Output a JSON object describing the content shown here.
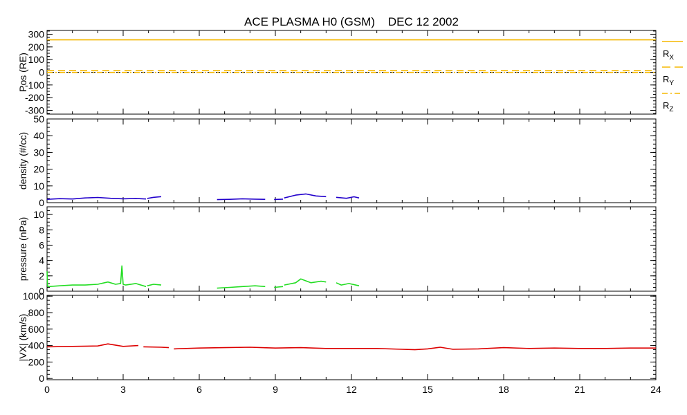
{
  "chart_data": {
    "title": "ACE PLASMA H0 (GSM)    DEC 12 2002",
    "type": "line",
    "x_ticks": [
      "0",
      "3",
      "6",
      "9",
      "12",
      "15",
      "18",
      "21",
      "24"
    ],
    "x_range": [
      0,
      24
    ],
    "legend_position": "right of top panel",
    "panels": [
      {
        "id": "pos",
        "ylabel": "Pos (RE)",
        "ylim": [
          -330,
          330
        ],
        "y_ticks": [
          "300",
          "200",
          "100",
          "0",
          "-100",
          "-200",
          "-300"
        ],
        "series": [
          {
            "name": "RX",
            "color": "#f5b800",
            "style": "solid",
            "x": [
              0,
              24
            ],
            "y": [
              256,
              256
            ]
          },
          {
            "name": "RY",
            "color": "#f5b800",
            "style": "dashed",
            "x": [
              0,
              24
            ],
            "y": [
              13,
              13
            ]
          },
          {
            "name": "RZ",
            "color": "#f5b800",
            "style": "dashdot",
            "x": [
              0,
              24
            ],
            "y": [
              -1,
              -1
            ]
          }
        ],
        "reference_line": {
          "y": 0,
          "color": "#000000",
          "style": "dotted"
        }
      },
      {
        "id": "density",
        "ylabel": "density (#/cc)",
        "ylim": [
          0,
          50
        ],
        "y_ticks": [
          "50",
          "40",
          "30",
          "20",
          "10",
          "0"
        ],
        "series": [
          {
            "name": "",
            "color": "#2200cc",
            "segments": [
              {
                "x": [
                  0.0,
                  0.5,
                  1.0,
                  1.5,
                  2.0,
                  2.5,
                  3.0,
                  3.5,
                  3.9
                ],
                "y": [
                  2.0,
                  2.4,
                  2.2,
                  2.8,
                  3.1,
                  2.6,
                  2.3,
                  2.5,
                  2.2
                ]
              },
              {
                "x": [
                  3.95,
                  4.2,
                  4.5
                ],
                "y": [
                  2.5,
                  3.2,
                  3.6
                ]
              },
              {
                "x": [
                  6.7,
                  7.2,
                  7.7,
                  8.2,
                  8.6
                ],
                "y": [
                  1.8,
                  2.0,
                  2.3,
                  2.1,
                  2.0
                ]
              },
              {
                "x": [
                  8.95,
                  9.3
                ],
                "y": [
                  1.9,
                  2.1
                ]
              },
              {
                "x": [
                  9.35,
                  9.8,
                  10.2,
                  10.6,
                  11.0
                ],
                "y": [
                  2.8,
                  4.5,
                  5.2,
                  4.0,
                  3.6
                ]
              },
              {
                "x": [
                  11.4,
                  11.8,
                  12.1,
                  12.3
                ],
                "y": [
                  3.2,
                  2.6,
                  3.5,
                  2.8
                ]
              }
            ]
          }
        ]
      },
      {
        "id": "pressure",
        "ylabel": "pressure (nPa)",
        "ylim": [
          0,
          11
        ],
        "y_ticks": [
          "10",
          "8",
          "6",
          "4",
          "2",
          "0"
        ],
        "series": [
          {
            "name": "",
            "color": "#22dd22",
            "segments": [
              {
                "x": [
                  0.0,
                  0.02,
                  0.05,
                  0.5,
                  1.0,
                  1.5,
                  2.0,
                  2.4,
                  2.7,
                  2.9,
                  2.95,
                  3.0,
                  3.1,
                  3.5,
                  3.9
                ],
                "y": [
                  2.6,
                  0.7,
                  0.6,
                  0.7,
                  0.8,
                  0.8,
                  0.9,
                  1.2,
                  0.9,
                  1.0,
                  3.3,
                  0.9,
                  0.8,
                  1.0,
                  0.6
                ]
              },
              {
                "x": [
                  3.95,
                  4.2,
                  4.5
                ],
                "y": [
                  0.7,
                  0.9,
                  0.8
                ]
              },
              {
                "x": [
                  6.7,
                  7.2,
                  7.7,
                  8.2,
                  8.6
                ],
                "y": [
                  0.4,
                  0.5,
                  0.6,
                  0.7,
                  0.6
                ]
              },
              {
                "x": [
                  8.95,
                  9.3
                ],
                "y": [
                  0.5,
                  0.6
                ]
              },
              {
                "x": [
                  9.35,
                  9.8,
                  10.0,
                  10.4,
                  10.8,
                  11.0
                ],
                "y": [
                  0.8,
                  1.1,
                  1.6,
                  1.1,
                  1.3,
                  1.2
                ]
              },
              {
                "x": [
                  11.4,
                  11.6,
                  11.9,
                  12.3
                ],
                "y": [
                  1.1,
                  0.8,
                  1.0,
                  0.7
                ]
              }
            ]
          }
        ]
      },
      {
        "id": "vx",
        "ylabel": "|VX| (km/s)",
        "ylim": [
          -15,
          1010
        ],
        "y_ticks": [
          "1000",
          "800",
          "600",
          "400",
          "200",
          "0"
        ],
        "series": [
          {
            "name": "",
            "color": "#dd0000",
            "segments": [
              {
                "x": [
                  0.0,
                  1.0,
                  2.0,
                  2.4,
                  3.0,
                  3.6
                ],
                "y": [
                  385,
                  390,
                  395,
                  420,
                  390,
                  400
                ]
              },
              {
                "x": [
                  3.8,
                  4.5,
                  4.8
                ],
                "y": [
                  385,
                  380,
                  375
                ]
              },
              {
                "x": [
                  5.0,
                  6.0,
                  7.0,
                  8.0,
                  9.0,
                  10.0,
                  11.0,
                  12.0,
                  13.0,
                  14.0,
                  14.5,
                  15.0,
                  15.5,
                  16.0,
                  17.0,
                  18.0,
                  19.0,
                  20.0,
                  21.0,
                  22.0,
                  23.0,
                  24.0
                ],
                "y": [
                  360,
                  370,
                  375,
                  380,
                  370,
                  375,
                  365,
                  365,
                  365,
                  355,
                  350,
                  360,
                  380,
                  355,
                  360,
                  375,
                  365,
                  370,
                  365,
                  365,
                  370,
                  370
                ]
              }
            ]
          }
        ]
      }
    ]
  }
}
